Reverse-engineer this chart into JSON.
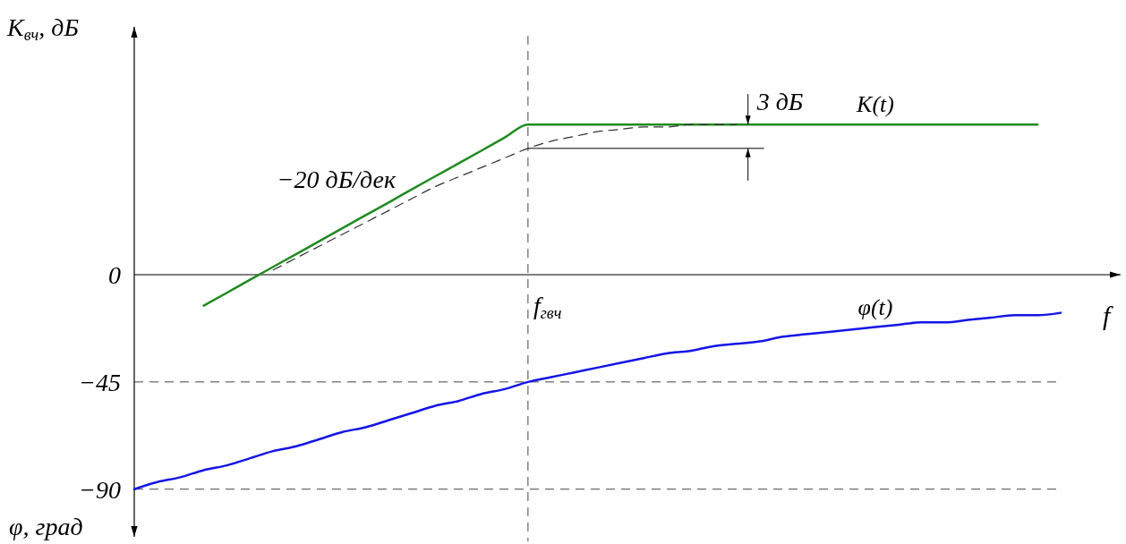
{
  "chart_data": {
    "type": "line",
    "ylabel": "K$_{вч}$, дБ",
    "xlabel": "f",
    "tick_labels": "y",
    "categories": [
      null,
      null,
      null,
      null,
      null,
      null,
      null,
      null,
      null,
      null,
      null,
      null,
      null,
      null,
      null,
      null,
      null,
      null,
      null,
      null,
      null,
      null,
      null,
      null,
      null,
      null,
      null,
      null,
      null,
      null,
      null,
      null,
      null,
      null,
      null,
      null,
      null,
      null,
      null,
      null,
      null
    ],
    "ylim": [
      -110,
      104
    ],
    "yticks": [
      0,
      -45,
      -90
    ],
    "series": [
      {
        "name": "K(t)",
        "color": "#1f8a1f",
        "line_style": "solid",
        "values": [
          null,
          null,
          null,
          -13,
          -7.6,
          -2.1,
          3.3,
          8.7,
          14.1,
          19.6,
          25,
          30.4,
          35.9,
          41.3,
          46.7,
          52.1,
          57.6,
          63,
          63,
          63,
          63,
          63,
          63,
          63,
          63,
          63,
          63,
          63,
          63,
          63,
          63,
          63,
          63,
          63,
          63,
          63,
          63,
          63,
          63,
          63,
          null
        ]
      },
      {
        "color": "#333333",
        "line_style": "dashed",
        "values": [
          null,
          null,
          null,
          null,
          null,
          null,
          2,
          7,
          12,
          17,
          22,
          27,
          32,
          37,
          41,
          45,
          49,
          53,
          56,
          58,
          60,
          61,
          62,
          62,
          63,
          63,
          63,
          null,
          null,
          null,
          null,
          null,
          null,
          null,
          null,
          null,
          null,
          null,
          null,
          null,
          null
        ]
      },
      {
        "name": "φ(t)",
        "color": "#1414e6",
        "line_style": "solid",
        "values": [
          -90,
          -87,
          -85,
          -82,
          -80,
          -77,
          -74,
          -72,
          -69,
          -66,
          -64,
          -61,
          -58,
          -55,
          -53,
          -50,
          -48,
          -45,
          -43,
          -41,
          -39,
          -37,
          -35,
          -33,
          -32,
          -30,
          -29,
          -28,
          -26,
          -25,
          -24,
          -23,
          -22,
          -21,
          -20,
          -20,
          -19,
          -18,
          -17,
          -17,
          -16
        ]
      }
    ],
    "ref_lines": [
      {
        "axis": "y",
        "value": -45,
        "line_style": "dashed",
        "color": "#444444"
      },
      {
        "axis": "y",
        "value": -90,
        "line_style": "dashed",
        "color": "#444444"
      }
    ],
    "annotations": [
      "−20 дБ/дек",
      "3 дБ",
      "φ, град",
      "f$_{гвч}$"
    ]
  }
}
